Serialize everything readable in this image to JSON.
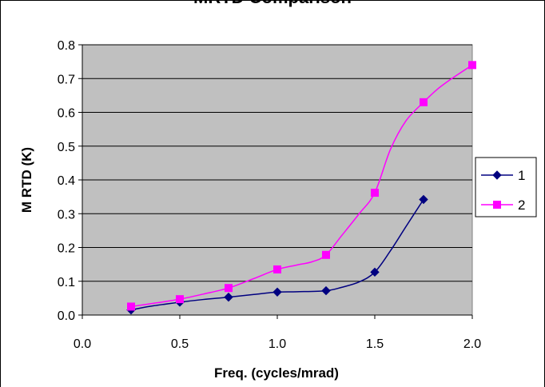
{
  "chart_data": {
    "type": "line",
    "title": "MRTD Comparison",
    "xlabel": "Freq. (cycles/mrad)",
    "ylabel": "M RTD (K)",
    "xlim": [
      0.0,
      2.0
    ],
    "ylim": [
      0.0,
      0.8
    ],
    "xticks": [
      "0.0",
      "0.5",
      "1.0",
      "1.5",
      "2.0"
    ],
    "yticks": [
      "0.0",
      "0.1",
      "0.2",
      "0.3",
      "0.4",
      "0.5",
      "0.6",
      "0.7",
      "0.8"
    ],
    "grid": true,
    "legend_position": "right",
    "plot_background": "#c0c0c0",
    "series": [
      {
        "name": "1",
        "color": "#000080",
        "marker": "diamond",
        "x": [
          0.25,
          0.5,
          0.75,
          1.0,
          1.25,
          1.5,
          1.75
        ],
        "y": [
          0.015,
          0.038,
          0.053,
          0.068,
          0.072,
          0.127,
          0.342
        ],
        "curve_x": [
          0.25,
          0.35,
          0.5,
          0.62,
          0.75,
          0.88,
          1.0,
          1.1,
          1.25,
          1.33,
          1.42,
          1.5,
          1.58,
          1.66,
          1.75
        ],
        "curve_y": [
          0.015,
          0.026,
          0.038,
          0.046,
          0.053,
          0.061,
          0.068,
          0.069,
          0.072,
          0.082,
          0.098,
          0.127,
          0.19,
          0.262,
          0.342
        ]
      },
      {
        "name": "2",
        "color": "#ff00ff",
        "marker": "square",
        "x": [
          0.25,
          0.5,
          0.75,
          1.0,
          1.25,
          1.5,
          1.75,
          2.0
        ],
        "y": [
          0.025,
          0.047,
          0.08,
          0.135,
          0.178,
          0.362,
          0.63,
          0.74
        ],
        "curve_x": [
          0.25,
          0.38,
          0.5,
          0.62,
          0.75,
          0.88,
          1.0,
          1.1,
          1.18,
          1.25,
          1.33,
          1.42,
          1.5,
          1.58,
          1.66,
          1.75,
          1.82,
          1.9,
          2.0
        ],
        "curve_y": [
          0.025,
          0.036,
          0.047,
          0.062,
          0.08,
          0.108,
          0.135,
          0.148,
          0.158,
          0.178,
          0.235,
          0.3,
          0.362,
          0.49,
          0.575,
          0.63,
          0.668,
          0.702,
          0.74
        ]
      }
    ]
  }
}
